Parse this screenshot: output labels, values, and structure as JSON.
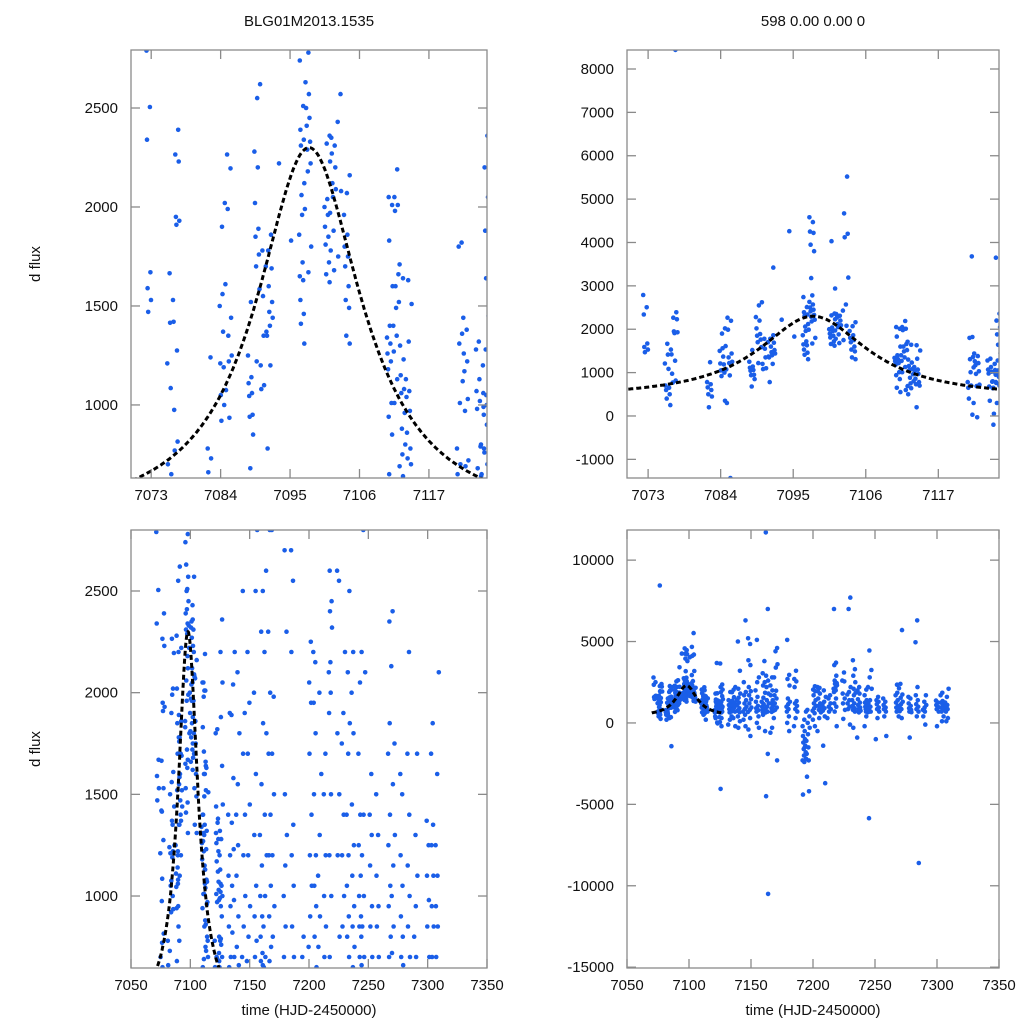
{
  "chart_data": {
    "type": "scatter",
    "colors": {
      "points": "#1a5ee8",
      "model": "#000000"
    },
    "model": {
      "kind": "lorentzian-peak",
      "t0": 7098,
      "peak_flux": 2300,
      "baseline": 400,
      "amplitude": 1900,
      "width_days": 10.1,
      "t_range": [
        7070,
        7126
      ]
    },
    "panels": [
      {
        "title": "BLG01M2013.1535",
        "ylabel": "d flux",
        "xlabel": "",
        "xlim": [
          7069.8,
          7126.2
        ],
        "ylim": [
          631,
          2793
        ],
        "xticks": [
          "7073",
          "7084",
          "7095",
          "7106",
          "7117"
        ],
        "yticks": [
          "1000",
          "1500",
          "2000",
          "2500"
        ]
      },
      {
        "title": "598  0.00  0.00  0",
        "ylabel": "",
        "xlabel": "",
        "xlim": [
          7069.8,
          7126.2
        ],
        "ylim": [
          -1430,
          8438
        ],
        "xticks": [
          "7073",
          "7084",
          "7095",
          "7106",
          "7117"
        ],
        "yticks": [
          "-1000",
          "0",
          "1000",
          "2000",
          "3000",
          "4000",
          "5000",
          "6000",
          "7000",
          "8000"
        ]
      },
      {
        "title": "",
        "ylabel": "d flux",
        "xlabel": "time (HJD-2450000)",
        "xlim": [
          7050,
          7350
        ],
        "ylim": [
          646,
          2800
        ],
        "xticks": [
          "7050",
          "7100",
          "7150",
          "7200",
          "7250",
          "7300",
          "7350"
        ],
        "yticks": [
          "1000",
          "1500",
          "2000",
          "2500"
        ]
      },
      {
        "title": "",
        "ylabel": "",
        "xlabel": "time (HJD-2450000)",
        "xlim": [
          7050,
          7350
        ],
        "ylim": [
          -15050,
          11850
        ],
        "xticks": [
          "7050",
          "7100",
          "7150",
          "7200",
          "7250",
          "7300",
          "7350"
        ],
        "yticks": [
          "-15000",
          "-10000",
          "-5000",
          "0",
          "5000",
          "10000"
        ]
      }
    ],
    "observations": [
      [
        7072.7,
        [
          2790,
          2505,
          2340,
          1670,
          1590,
          1530,
          1470
        ]
      ],
      [
        7076.0,
        [
          1665,
          1530,
          1415,
          1210,
          1085,
          700,
          650,
          600,
          500,
          400,
          250
        ]
      ],
      [
        7077.0,
        [
          2390,
          2265,
          2230,
          1950,
          1930,
          1910,
          1420,
          1275,
          975,
          815,
          770
        ]
      ],
      [
        7077.5,
        [
          8440
        ]
      ],
      [
        7082.4,
        [
          1240,
          780,
          730,
          660,
          600,
          500,
          450,
          200
        ]
      ],
      [
        7084.3,
        [
          2020,
          1900,
          1610,
          1560,
          1500,
          1370,
          1210,
          1190,
          1050,
          1000,
          920,
          350
        ]
      ],
      [
        7085.3,
        [
          2265,
          2195,
          1990,
          1440,
          1350,
          1250,
          1220,
          1075,
          935,
          300,
          -1430
        ]
      ],
      [
        7088.7,
        [
          1520,
          1250,
          1140,
          1110,
          1060,
          1045,
          950,
          940,
          850,
          680
        ]
      ],
      [
        7089.8,
        [
          2620,
          2550,
          2280,
          2200,
          2020,
          1890,
          1850,
          1760,
          1700,
          1585,
          1220
        ]
      ],
      [
        7090.8,
        [
          1780,
          1700,
          1550,
          1370,
          1350,
          1200,
          1100,
          1080
        ]
      ],
      [
        7091.8,
        [
          1860,
          1780,
          1690,
          1600,
          1520,
          1470,
          1440,
          1400,
          1350,
          1200,
          780,
          3420
        ]
      ],
      [
        7093.7,
        [
          2220
        ]
      ],
      [
        7094.5,
        [
          4260
        ]
      ],
      [
        7094.9,
        [
          1830
        ]
      ],
      [
        7096.9,
        [
          2740,
          2510,
          2390,
          2340,
          2310,
          2120,
          2060,
          1990,
          1960,
          1860,
          1720,
          1650,
          1630,
          1530,
          1460,
          1410,
          1310
        ]
      ],
      [
        7097.9,
        [
          2780,
          2630,
          2570,
          2500,
          2450,
          2410,
          2330,
          2290,
          2220,
          2180,
          1800,
          1670,
          4580,
          4470,
          4250,
          4220,
          3950,
          3800,
          3180
        ]
      ],
      [
        7100.9,
        [
          2360,
          2320,
          2230,
          2040,
          2000,
          1960,
          1900,
          1850,
          1810,
          1720,
          1660,
          1620,
          4030,
          2940
        ]
      ],
      [
        7101.8,
        [
          2350,
          2310,
          2270,
          2200,
          2120,
          2090,
          2050,
          1970,
          1880,
          1780,
          1680
        ]
      ],
      [
        7102.9,
        [
          2570,
          2430,
          2080,
          1750,
          5520,
          4670,
          4200,
          4120,
          3190
        ]
      ],
      [
        7104.0,
        [
          2160,
          2070,
          1960,
          1860,
          1800,
          1750,
          1700,
          1600,
          1530,
          1490,
          1350,
          1310
        ]
      ],
      [
        7110.8,
        [
          2050,
          2010,
          1830,
          1600,
          1400,
          1340,
          1310,
          1260,
          1220,
          1180,
          1010,
          940,
          850,
          650,
          550
        ]
      ],
      [
        7111.8,
        [
          2190,
          2050,
          2010,
          1980,
          1660,
          1600,
          1520,
          1490,
          1400,
          1350,
          1270,
          1130,
          1010,
          600
        ]
      ],
      [
        7112.8,
        [
          1710,
          1640,
          1300,
          1230,
          1150,
          1080,
          1060,
          960,
          880,
          800,
          750,
          690,
          640,
          500
        ]
      ],
      [
        7113.8,
        [
          1630,
          1510,
          1320,
          1130,
          1070,
          1040,
          970,
          860,
          780,
          730,
          700,
          200
        ]
      ],
      [
        7121.9,
        [
          1820,
          1800,
          1360,
          1310,
          1120,
          1010,
          780,
          700,
          650,
          3680,
          400,
          30
        ]
      ],
      [
        7122.8,
        [
          1440,
          1380,
          1260,
          1220,
          1170,
          1030,
          970,
          720,
          690,
          300,
          -30
        ]
      ],
      [
        7124.9,
        [
          1320,
          1280,
          1130,
          1070,
          1020,
          980,
          790,
          680,
          640,
          350,
          -200
        ]
      ],
      [
        7125.7,
        [
          1640,
          1060,
          1000,
          950,
          800,
          760,
          650,
          300,
          50
        ]
      ],
      [
        7126,
        [
          3650,
          2360,
          2200,
          2050,
          1880,
          1450,
          1280,
          1200,
          1050,
          990,
          900,
          780,
          700,
          -4050
        ]
      ],
      [
        7133,
        [
          1900,
          1400,
          1200,
          1100,
          950,
          850,
          700,
          650,
          400,
          200,
          -100
        ]
      ],
      [
        7136,
        [
          2200,
          2040,
          1890,
          1580,
          1360,
          1230,
          1050,
          980,
          820,
          700,
          300,
          -200
        ]
      ],
      [
        7140,
        [
          5000,
          3200,
          2100,
          1800,
          1550,
          1400,
          1250,
          1100,
          900,
          750,
          660,
          400,
          100,
          -300
        ]
      ],
      [
        7145,
        [
          6300,
          2500,
          1900,
          1700,
          1400,
          1200,
          1000,
          850,
          700,
          500,
          200,
          -200
        ]
      ],
      [
        7149,
        [
          5200,
          4850,
          3850,
          3550,
          2200,
          1950,
          1700,
          1450,
          1200,
          950,
          800,
          680,
          300,
          -400,
          -800
        ]
      ],
      [
        7155,
        [
          5100,
          2800,
          2500,
          2000,
          1600,
          1300,
          1050,
          900,
          780,
          700,
          400,
          0,
          -300
        ]
      ],
      [
        7160,
        [
          3800,
          3050,
          2500,
          2300,
          1850,
          1550,
          1300,
          1150,
          1000,
          900,
          800,
          720,
          680,
          660,
          500,
          -500
        ]
      ],
      [
        7163,
        [
          11700,
          7000,
          2900,
          2600,
          2200,
          1800,
          1400,
          1200,
          1000,
          850,
          700,
          650,
          -1900,
          -4500,
          -10500,
          -15100
        ]
      ],
      [
        7167,
        [
          2800,
          2300,
          2000,
          1700,
          1400,
          1200,
          1050,
          900,
          750,
          680,
          300,
          -300,
          -600
        ]
      ],
      [
        7170,
        [
          4600,
          4400,
          3600,
          3400,
          2800,
          1980,
          1700,
          1500,
          1200,
          950,
          800,
          -2300
        ]
      ],
      [
        7180,
        [
          5100,
          2950,
          2700,
          2300,
          1500,
          1300,
          1150,
          1000,
          850,
          700,
          400,
          0,
          -500
        ]
      ],
      [
        7186,
        [
          3200,
          2700,
          2550,
          2200,
          1350,
          1200,
          1050,
          850,
          700,
          300,
          -200
        ]
      ],
      [
        7193,
        [
          700,
          200,
          -200,
          -500,
          -800,
          -1000,
          -1200,
          -1400,
          -1600,
          -1800,
          -2000,
          -2200,
          -2400,
          -2300,
          -1500,
          -4400
        ]
      ],
      [
        7196,
        [
          800,
          400,
          0,
          -300,
          -700,
          -1100,
          -1500,
          -1900,
          -2300,
          -3300,
          -4200
        ]
      ],
      [
        7201,
        [
          2250,
          2050,
          1950,
          1700,
          1400,
          1200,
          1050,
          900,
          750,
          600,
          200,
          -200
        ]
      ],
      [
        7205,
        [
          2200,
          2150,
          1950,
          1800,
          1500,
          1200,
          1050,
          950,
          800,
          650,
          300,
          -500
        ]
      ],
      [
        7209,
        [
          2000,
          1600,
          1300,
          1100,
          900,
          750,
          400,
          -1400,
          -3700
        ]
      ],
      [
        7213,
        [
          1700,
          1500,
          1200,
          1000,
          850,
          700,
          300
        ]
      ],
      [
        7218,
        [
          7000,
          3700,
          3550,
          2900,
          2600,
          2450,
          2400,
          2320,
          2150,
          2100,
          2000,
          1900,
          1500,
          1200,
          1000,
          700,
          -200
        ]
      ],
      [
        7225,
        [
          3100,
          2600,
          2550,
          1800,
          1500,
          1200,
          800,
          250
        ]
      ],
      [
        7229,
        [
          7700,
          7000,
          2200,
          1900,
          1750,
          1400,
          1200,
          1000,
          850,
          -100
        ]
      ],
      [
        7233,
        [
          3850,
          3300,
          2900,
          2500,
          2100,
          1850,
          1700,
          1400,
          1200,
          1050,
          900,
          800,
          700,
          -300
        ]
      ],
      [
        7237,
        [
          2200,
          2000,
          1800,
          1450,
          1250,
          1100,
          950,
          850,
          750,
          650,
          -900
        ]
      ],
      [
        7243,
        [
          2200,
          2050,
          1700,
          1400,
          1250,
          1100,
          1000,
          900,
          850,
          800,
          700,
          660,
          400,
          -200
        ]
      ],
      [
        7246,
        [
          4450,
          3250,
          2800,
          2100,
          1400,
          1200,
          1000,
          850,
          700,
          -5850
        ]
      ],
      [
        7252,
        [
          1600,
          1400,
          1300,
          1150,
          950,
          850,
          700,
          300,
          -1000
        ]
      ],
      [
        7258,
        [
          1500,
          1300,
          1100,
          950,
          850,
          700,
          400,
          -800
        ]
      ],
      [
        7268,
        [
          2350,
          2130,
          1850,
          1700,
          1400,
          1250,
          1050,
          950,
          800,
          700,
          400
        ]
      ],
      [
        7271,
        [
          5700,
          2400,
          1750,
          1550,
          1300,
          1150,
          1000,
          850,
          720,
          300
        ]
      ],
      [
        7278,
        [
          1600,
          1500,
          1200,
          1050,
          900,
          800,
          700,
          660,
          -900
        ]
      ],
      [
        7284,
        [
          6300,
          4950,
          2200,
          1700,
          1400,
          1150,
          1000,
          850,
          700,
          400,
          -8600
        ]
      ],
      [
        7290,
        [
          1700,
          1300,
          1100,
          950,
          800,
          700,
          400,
          -100
        ]
      ],
      [
        7300,
        [
          1370,
          1250,
          1100,
          980,
          850,
          700,
          -200
        ]
      ],
      [
        7304,
        [
          1850,
          1700,
          1350,
          1250,
          1100,
          950,
          850,
          700,
          400,
          100
        ]
      ],
      [
        7308,
        [
          2100,
          1600,
          1250,
          1100,
          950,
          850,
          700,
          300,
          100
        ]
      ]
    ]
  }
}
